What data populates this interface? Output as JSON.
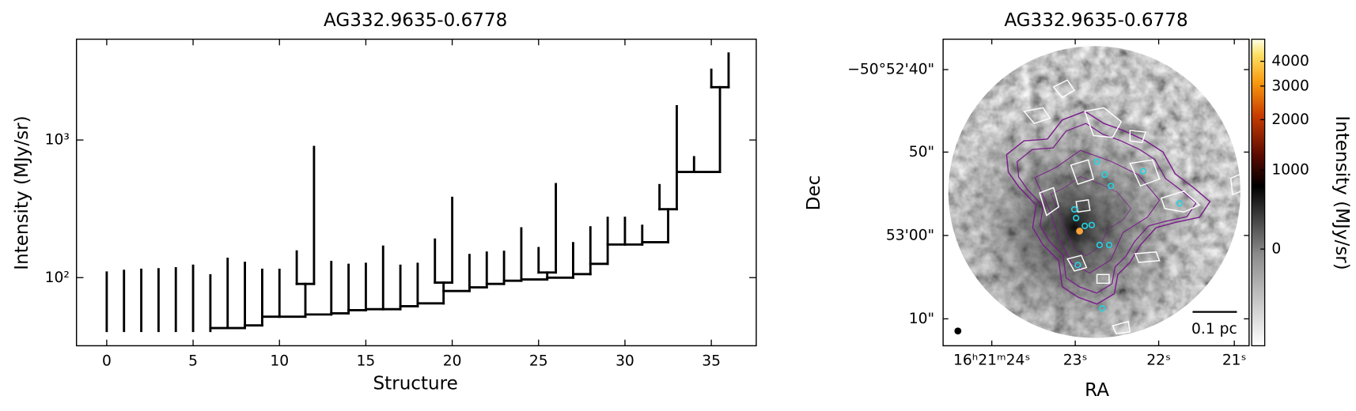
{
  "chart_data": [
    {
      "type": "dendrogram",
      "title": "AG332.9635-0.6778",
      "xlabel": "Structure",
      "ylabel": "Intensity (MJy/sr)",
      "yscale": "log",
      "color": "#000000",
      "xlim": [
        -1.75,
        37.6
      ],
      "ylim": [
        32,
        5400
      ],
      "xticks": [
        0,
        5,
        10,
        15,
        20,
        25,
        30,
        35
      ],
      "yticks": [
        {
          "value": 100,
          "label": "10²"
        },
        {
          "value": 1000,
          "label": "10³"
        }
      ],
      "branches": [
        {
          "x": 0,
          "base": 41,
          "peak": 109
        },
        {
          "x": 1,
          "base": 41,
          "peak": 112
        },
        {
          "x": 2,
          "base": 41,
          "peak": 114
        },
        {
          "x": 3,
          "base": 41,
          "peak": 115
        },
        {
          "x": 4,
          "base": 41,
          "peak": 117
        },
        {
          "x": 5,
          "base": 41,
          "peak": 122
        },
        {
          "x": 6,
          "base": 41,
          "peak": 104
        },
        {
          "x": 7,
          "base": 43,
          "peak": 137
        },
        {
          "x": 8,
          "base": 43,
          "peak": 128
        },
        {
          "x": 9,
          "base": 45,
          "peak": 114
        },
        {
          "x": 10,
          "base": 52,
          "peak": 114
        },
        {
          "x": 11.5,
          "base": 52,
          "peak": 90
        },
        {
          "x": 11,
          "base": 90,
          "peak": 155
        },
        {
          "x": 12,
          "base": 90,
          "peak": 890
        },
        {
          "x": 13,
          "base": 54,
          "peak": 130
        },
        {
          "x": 14,
          "base": 55,
          "peak": 124
        },
        {
          "x": 15,
          "base": 58,
          "peak": 126
        },
        {
          "x": 16,
          "base": 59,
          "peak": 168
        },
        {
          "x": 17,
          "base": 59,
          "peak": 122
        },
        {
          "x": 18,
          "base": 62,
          "peak": 126
        },
        {
          "x": 19.5,
          "base": 65,
          "peak": 92
        },
        {
          "x": 19,
          "base": 92,
          "peak": 189
        },
        {
          "x": 20,
          "base": 92,
          "peak": 380
        },
        {
          "x": 21,
          "base": 80,
          "peak": 146
        },
        {
          "x": 22,
          "base": 85,
          "peak": 152
        },
        {
          "x": 23,
          "base": 90,
          "peak": 154
        },
        {
          "x": 24,
          "base": 95,
          "peak": 228
        },
        {
          "x": 25.5,
          "base": 97,
          "peak": 109
        },
        {
          "x": 25,
          "base": 109,
          "peak": 164
        },
        {
          "x": 26,
          "base": 109,
          "peak": 478
        },
        {
          "x": 27,
          "base": 100,
          "peak": 178
        },
        {
          "x": 28,
          "base": 106,
          "peak": 232
        },
        {
          "x": 29,
          "base": 126,
          "peak": 272
        },
        {
          "x": 30,
          "base": 174,
          "peak": 272
        },
        {
          "x": 31,
          "base": 174,
          "peak": 238
        },
        {
          "x": 32.5,
          "base": 181,
          "peak": 314
        },
        {
          "x": 32,
          "base": 314,
          "peak": 470
        },
        {
          "x": 33,
          "base": 314,
          "peak": 1760
        },
        {
          "x": 34,
          "base": 586,
          "peak": 750
        },
        {
          "x": 35.5,
          "base": 586,
          "peak": 2420
        },
        {
          "x": 35,
          "base": 2420,
          "peak": 3240
        },
        {
          "x": 36,
          "base": 2420,
          "peak": 4250
        }
      ],
      "links": [
        {
          "x": [
            6,
            7
          ],
          "y": 43
        },
        {
          "x": [
            7,
            8
          ],
          "y": 43
        },
        {
          "x": [
            8,
            9
          ],
          "y": 45
        },
        {
          "x": [
            9,
            10
          ],
          "y": 52
        },
        {
          "x": [
            10,
            11.5
          ],
          "y": 52
        },
        {
          "x": [
            11,
            12
          ],
          "y": 90
        },
        {
          "x": [
            11.5,
            13
          ],
          "y": 54
        },
        {
          "x": [
            13,
            14
          ],
          "y": 55
        },
        {
          "x": [
            14,
            15
          ],
          "y": 58
        },
        {
          "x": [
            15,
            16
          ],
          "y": 59
        },
        {
          "x": [
            16,
            17
          ],
          "y": 59
        },
        {
          "x": [
            17,
            18
          ],
          "y": 62
        },
        {
          "x": [
            18,
            19.5
          ],
          "y": 65
        },
        {
          "x": [
            19,
            20
          ],
          "y": 92
        },
        {
          "x": [
            19.5,
            21
          ],
          "y": 80
        },
        {
          "x": [
            21,
            22
          ],
          "y": 85
        },
        {
          "x": [
            22,
            23
          ],
          "y": 90
        },
        {
          "x": [
            23,
            24
          ],
          "y": 95
        },
        {
          "x": [
            24,
            25.5
          ],
          "y": 97
        },
        {
          "x": [
            25,
            26
          ],
          "y": 109
        },
        {
          "x": [
            25.5,
            27
          ],
          "y": 100
        },
        {
          "x": [
            27,
            28
          ],
          "y": 106
        },
        {
          "x": [
            28,
            29
          ],
          "y": 126
        },
        {
          "x": [
            29,
            30
          ],
          "y": 174
        },
        {
          "x": [
            30,
            31
          ],
          "y": 174
        },
        {
          "x": [
            31,
            32.5
          ],
          "y": 181
        },
        {
          "x": [
            32,
            33
          ],
          "y": 314
        },
        {
          "x": [
            33,
            34
          ],
          "y": 586
        },
        {
          "x": [
            34,
            35.5
          ],
          "y": 586
        },
        {
          "x": [
            35,
            36
          ],
          "y": 2420
        }
      ]
    },
    {
      "type": "image",
      "title": "AG332.9635-0.6778",
      "xlabel": "RA",
      "ylabel": "Dec",
      "xtick_labels": [
        "16ʰ21ᵐ24ˢ",
        "23ˢ",
        "22ˢ",
        "21ˢ"
      ],
      "ytick_labels": [
        "−50°52'40\"",
        "50\"",
        "53'00\"",
        "10\""
      ],
      "scalebar_label": "0.1 pc",
      "colorbar": {
        "label": "Intensity (MJy/sr)",
        "stretch": "asinh",
        "lim": [
          -1300,
          5150
        ],
        "ticks": [
          0,
          1000,
          2000,
          3000,
          4000
        ]
      }
    }
  ]
}
